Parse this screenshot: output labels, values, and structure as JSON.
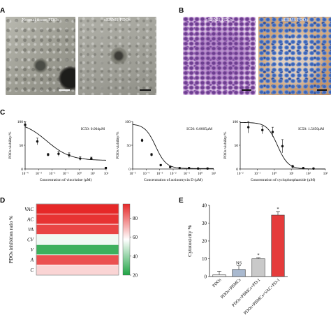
{
  "panels": {
    "a": "A",
    "b": "B",
    "c": "C",
    "d": "D",
    "e": "E"
  },
  "panel_a": {
    "left_title": "Normal tissue PDOs",
    "right_title": "cERMS PDOs"
  },
  "panel_b": {
    "left_title": "cERMS PDOs",
    "right_title": "cERMS PDOs"
  },
  "chart_data": [
    {
      "type": "scatter",
      "panel": "C",
      "title": "IC50: 0.004μM",
      "xlabel": "Concentration of vincristine (μM)",
      "ylabel": "PDOs viability/%",
      "xscale": "log",
      "xlim": [
        0.0001,
        100
      ],
      "ylim": [
        0,
        100
      ],
      "xticks": [
        "10⁻⁴",
        "10⁻³",
        "10⁻²",
        "10⁻¹",
        "10⁰",
        "10¹",
        "10²"
      ],
      "yticks": [
        "0",
        "50",
        "100"
      ],
      "x": [
        0.0001,
        0.0008,
        0.005,
        0.03,
        0.18,
        1.2,
        8,
        95
      ],
      "y": [
        93,
        58,
        30,
        32,
        29,
        22,
        22,
        2
      ],
      "err": [
        6,
        7,
        3,
        5,
        5,
        4,
        3,
        2
      ],
      "fit": {
        "top": 100,
        "bottom": 18,
        "ic50": 0.004,
        "hill": 0.5
      }
    },
    {
      "type": "scatter",
      "panel": "C",
      "title": "IC50: 0.0005μM",
      "xlabel": "Concentration of actinomycin D (μM)",
      "ylabel": "PDOs viability/%",
      "xscale": "log",
      "xlim": [
        1e-05,
        10
      ],
      "ylim": [
        0,
        100
      ],
      "xticks": [
        "10⁻⁵",
        "10⁻⁴",
        "10⁻³",
        "10⁻²",
        "10⁻¹",
        "10⁰",
        "10¹"
      ],
      "yticks": [
        "0",
        "50",
        "100"
      ],
      "x": [
        5e-05,
        0.00025,
        0.0012,
        0.006,
        0.03,
        0.15,
        0.7,
        3.5
      ],
      "y": [
        60,
        30,
        8,
        4,
        2,
        2,
        1,
        1
      ],
      "err": [
        3,
        3,
        2,
        1,
        1,
        1,
        1,
        1
      ],
      "fit": {
        "top": 95,
        "bottom": 1,
        "ic50": 0.0005,
        "hill": 1.1
      }
    },
    {
      "type": "scatter",
      "panel": "C",
      "title": "IC50: 1.5650μM",
      "xlabel": "Concentration of cyclophosphamide (μM)",
      "ylabel": "PDOs viability/%",
      "xscale": "log",
      "xlim": [
        0.01,
        1000
      ],
      "ylim": [
        0,
        100
      ],
      "xticks": [
        "10⁻²",
        "10⁻¹",
        "10⁰",
        "10¹",
        "10²",
        "10³"
      ],
      "yticks": [
        "0",
        "50",
        "100"
      ],
      "x": [
        0.03,
        0.2,
        0.8,
        3,
        12,
        50,
        200
      ],
      "y": [
        88,
        82,
        78,
        48,
        5,
        2,
        1
      ],
      "err": [
        12,
        8,
        10,
        14,
        3,
        1,
        1
      ],
      "fit": {
        "top": 98,
        "bottom": 0,
        "ic50": 1.565,
        "hill": 1.4
      }
    },
    {
      "type": "heatmap",
      "panel": "D",
      "ylabel": "PDOs inhibition ratio %",
      "rows": [
        "VAC",
        "AC",
        "VA",
        "CV",
        "V",
        "A",
        "C"
      ],
      "values": [
        95,
        93,
        90,
        55,
        25,
        88,
        65
      ],
      "colorbar": {
        "min": 20,
        "max": 95,
        "ticks": [
          20,
          40,
          60,
          80
        ]
      }
    },
    {
      "type": "bar",
      "panel": "E",
      "ylabel": "Cytotoxicity %",
      "ylim": [
        0,
        40
      ],
      "yticks": [
        "0",
        "10",
        "20",
        "30",
        "40"
      ],
      "categories": [
        "PDOs",
        "PDOs+PBMCs",
        "PDOs+PBMCs+PD-1",
        "PDOs+PBMCs+VAC+PD-1"
      ],
      "values": [
        1,
        4,
        10,
        34.5
      ],
      "err": [
        2,
        2,
        0.6,
        2
      ],
      "annotations": [
        "",
        "NS",
        "*",
        "*"
      ],
      "colors": [
        "#e8e8e8",
        "#a9b9cf",
        "#c9c9c9",
        "#e53b3b"
      ]
    }
  ]
}
